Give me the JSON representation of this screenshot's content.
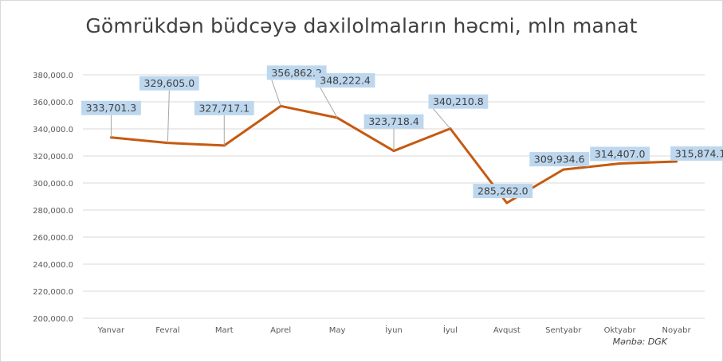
{
  "chart_data": {
    "type": "line",
    "title": "Gömrükdən büdcəyə daxilolmaların həcmi, mln manat",
    "source": "Mənbə: DGK",
    "categories": [
      "Yanvar",
      "Fevral",
      "Mart",
      "Aprel",
      "May",
      "İyun",
      "İyul",
      "Avqust",
      "Sentyabr",
      "Oktyabr",
      "Noyabr"
    ],
    "series": [
      {
        "values": [
          333701.3,
          329605.0,
          327717.1,
          356862.2,
          348222.4,
          323718.4,
          340210.8,
          285262.0,
          309934.6,
          314407.0,
          315874.1
        ],
        "labels": [
          "333,701.3",
          "329,605.0",
          "327,717.1",
          "356,862.2",
          "348,222.4",
          "323,718.4",
          "340,210.8",
          "285,262.0",
          "309,934.6",
          "314,407.0",
          "315,874.1"
        ],
        "color": "#c55a11"
      }
    ],
    "ylim": [
      200000,
      380000
    ],
    "yticks": [
      200000,
      220000,
      240000,
      260000,
      280000,
      300000,
      320000,
      340000,
      360000,
      380000
    ],
    "ytick_labels": [
      "200,000.0",
      "220,000.0",
      "240,000.0",
      "260,000.0",
      "280,000.0",
      "300,000.0",
      "320,000.0",
      "340,000.0",
      "360,000.0",
      "380,000.0"
    ],
    "grid": true,
    "legend": "none",
    "label_fill": "#bdd7ee",
    "gridline_color": "#d9d9d9"
  }
}
